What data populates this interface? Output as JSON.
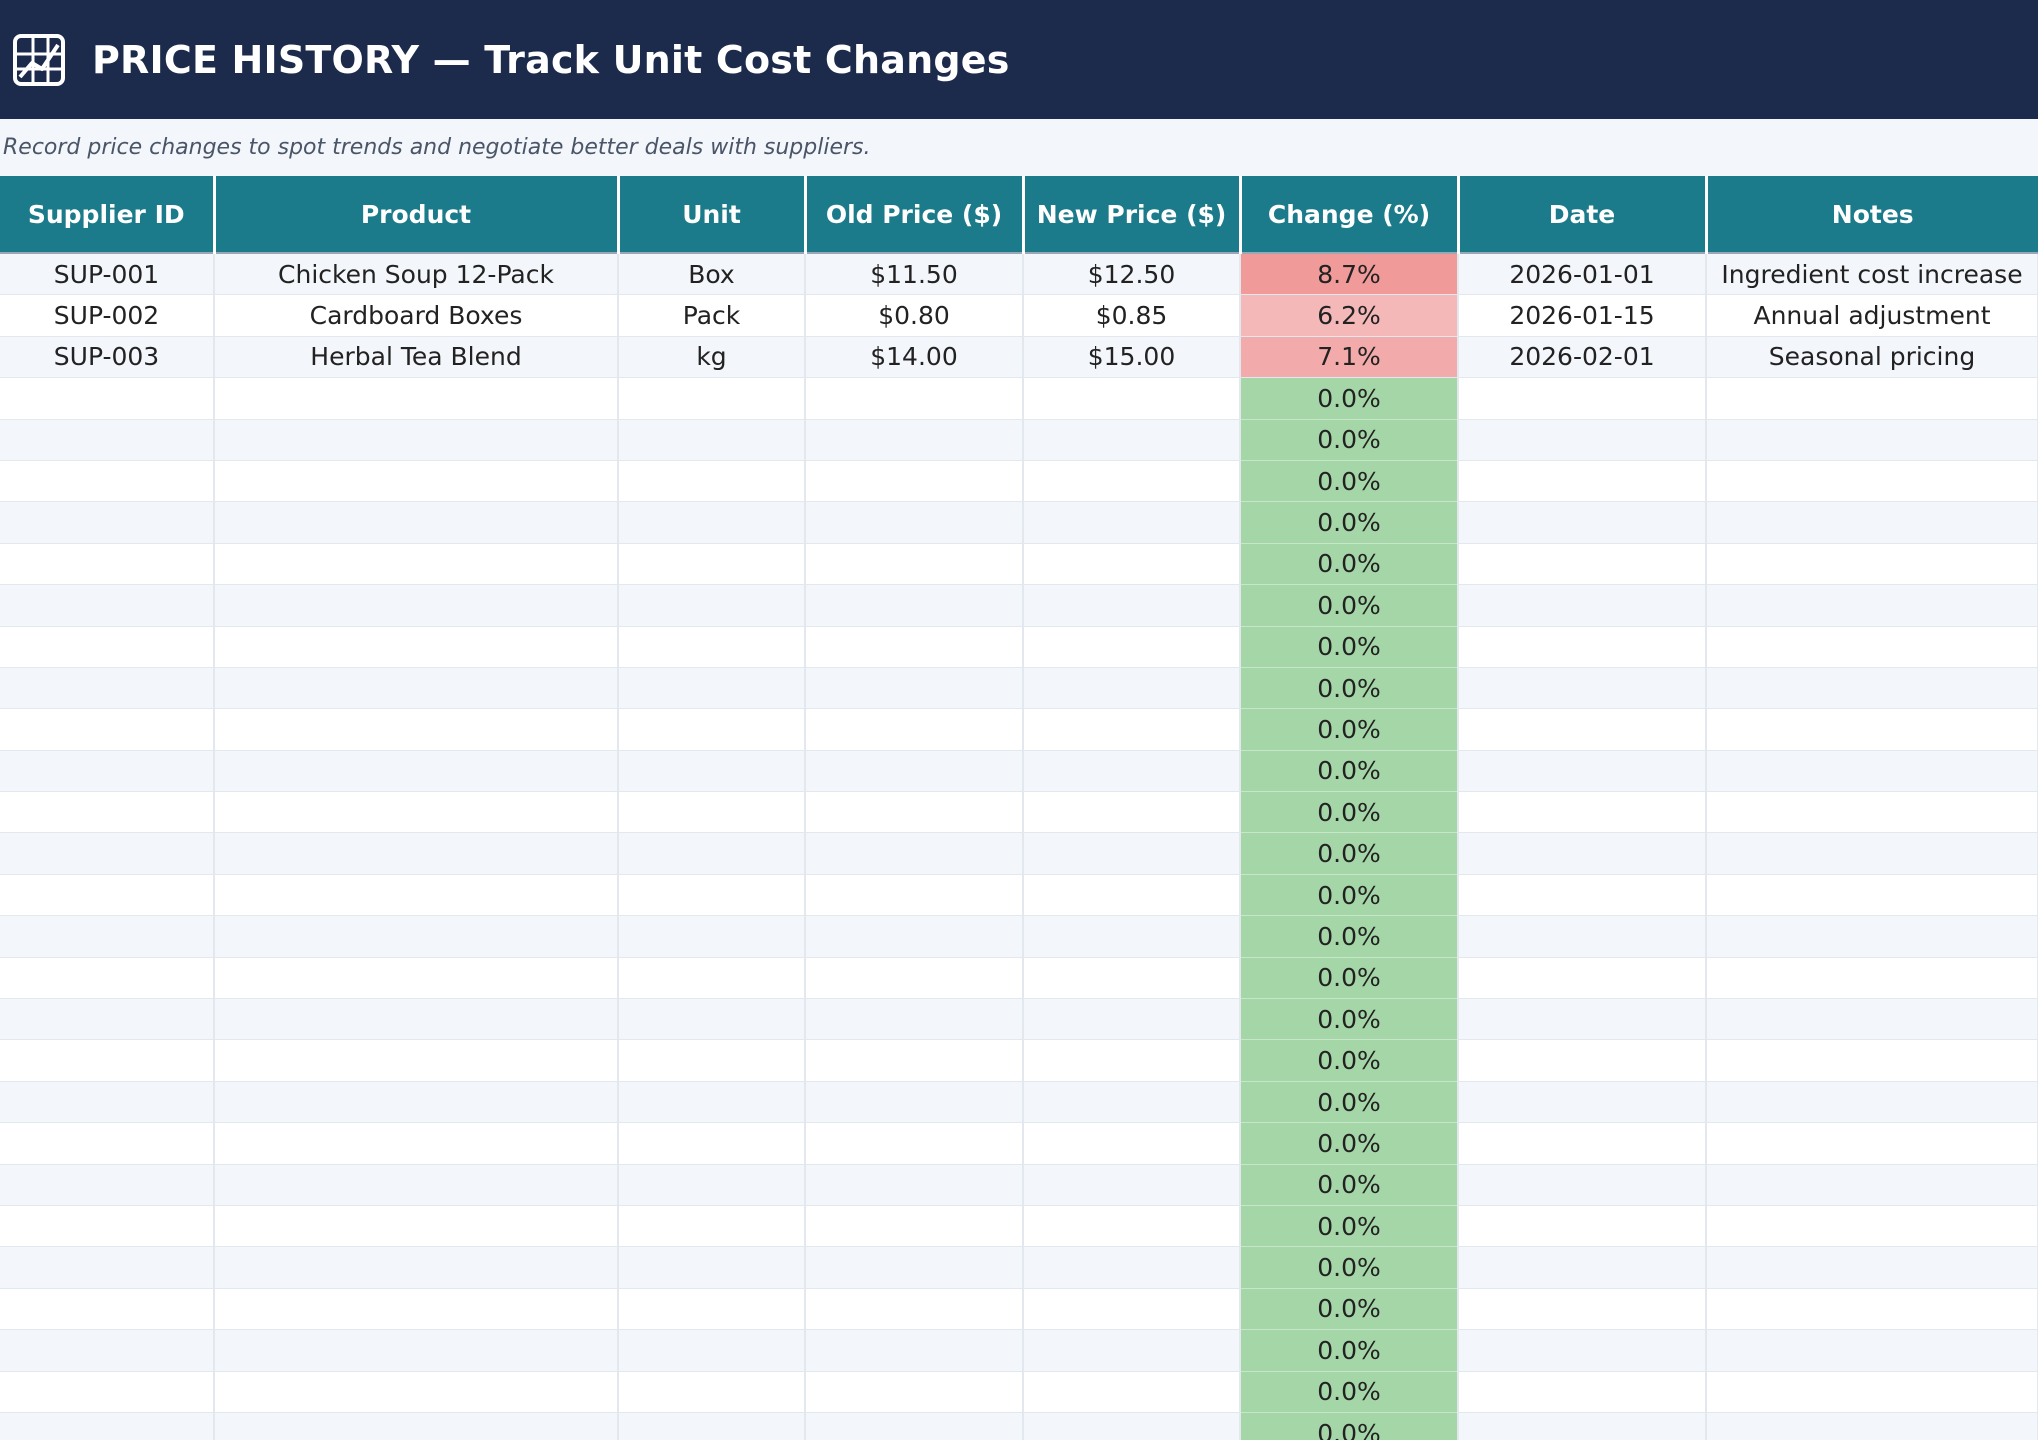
{
  "header": {
    "title": "PRICE HISTORY  —  Track Unit Cost Changes",
    "icon": "chart-grid-icon"
  },
  "subtitle": "Record price changes to spot trends and negotiate better deals with suppliers.",
  "table": {
    "columns": [
      "Supplier ID",
      "Product",
      "Unit",
      "Old Price ($)",
      "New Price ($)",
      "Change (%)",
      "Date",
      "Notes"
    ],
    "rows": [
      {
        "supplier_id": "SUP-001",
        "product": "Chicken Soup 12-Pack",
        "unit": "Box",
        "old_price": "$11.50",
        "new_price": "$12.50",
        "change": "8.7%",
        "date": "2026-01-01",
        "notes": "Ingredient cost increase",
        "change_color": "#f09a9a"
      },
      {
        "supplier_id": "SUP-002",
        "product": "Cardboard Boxes",
        "unit": "Pack",
        "old_price": "$0.80",
        "new_price": "$0.85",
        "change": "6.2%",
        "date": "2026-01-15",
        "notes": "Annual adjustment",
        "change_color": "#f5b8b8"
      },
      {
        "supplier_id": "SUP-003",
        "product": "Herbal Tea Blend",
        "unit": "kg",
        "old_price": "$14.00",
        "new_price": "$15.00",
        "change": "7.1%",
        "date": "2026-02-01",
        "notes": "Seasonal pricing",
        "change_color": "#f3aaaa"
      }
    ],
    "empty_row_change": "0.0%",
    "empty_row_count": 26
  },
  "colors": {
    "title_bg": "#1c2a4b",
    "header_bg": "#1b7b8a",
    "increase_high": "#f09a9a",
    "zero_change": "#a5d6a7",
    "row_alt": "#f3f6fa"
  }
}
